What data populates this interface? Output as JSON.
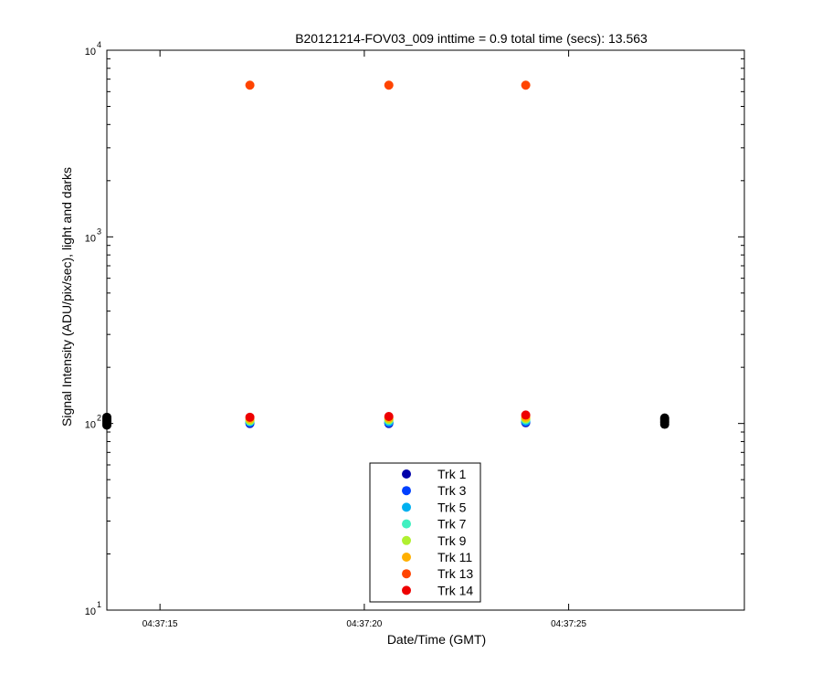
{
  "chart_data": {
    "type": "scatter",
    "title": "B20121214-FOV03_009 inttime = 0.9 total time (secs): 13.563",
    "xlabel": "Date/Time (GMT)",
    "ylabel": "Signal Intensity (ADU/pix/sec), light and darks",
    "y_scale": "log",
    "ylim": [
      10,
      10000
    ],
    "xlim": [
      "04:37:13.70",
      "04:37:29.30"
    ],
    "x_ticks": [
      "04:37:15",
      "04:37:20",
      "04:37:25"
    ],
    "y_ticks": [
      {
        "base": "10",
        "exp": "1"
      },
      {
        "base": "10",
        "exp": "2"
      },
      {
        "base": "10",
        "exp": "3"
      },
      {
        "base": "10",
        "exp": "4"
      }
    ],
    "grid": false,
    "legend_position": "bottom-center",
    "series": [
      {
        "name": "Trk 1",
        "color": "#0000aa",
        "x": [
          "04:37:17.20",
          "04:37:20.60",
          "04:37:23.95"
        ],
        "y": [
          100,
          100,
          101
        ]
      },
      {
        "name": "Trk 3",
        "color": "#0040ff",
        "x": [
          "04:37:17.20",
          "04:37:20.60",
          "04:37:23.95"
        ],
        "y": [
          101,
          101,
          102
        ]
      },
      {
        "name": "Trk 5",
        "color": "#00b0f0",
        "x": [
          "04:37:17.20",
          "04:37:20.60",
          "04:37:23.95"
        ],
        "y": [
          102,
          102,
          103
        ]
      },
      {
        "name": "Trk 7",
        "color": "#40f0c0",
        "x": [
          "04:37:17.20",
          "04:37:20.60",
          "04:37:23.95"
        ],
        "y": [
          103,
          104,
          105
        ]
      },
      {
        "name": "Trk 9",
        "color": "#b0f030",
        "x": [
          "04:37:17.20",
          "04:37:20.60",
          "04:37:23.95"
        ],
        "y": [
          104,
          105,
          106
        ]
      },
      {
        "name": "Trk 11",
        "color": "#ffb000",
        "x": [
          "04:37:17.20",
          "04:37:20.60",
          "04:37:23.95"
        ],
        "y": [
          106,
          107,
          108
        ]
      },
      {
        "name": "Trk 13",
        "color": "#ff4400",
        "x": [
          "04:37:17.20",
          "04:37:20.60",
          "04:37:23.95"
        ],
        "y": [
          6500,
          6500,
          6500
        ]
      },
      {
        "name": "Trk 14",
        "color": "#ee0000",
        "x": [
          "04:37:17.20",
          "04:37:20.60",
          "04:37:23.95"
        ],
        "y": [
          108,
          109,
          111
        ]
      }
    ],
    "darks": {
      "color": "#000000",
      "x": [
        "04:37:13.70",
        "04:37:13.70",
        "04:37:13.70",
        "04:37:13.70",
        "04:37:13.70",
        "04:37:13.70",
        "04:37:27.35",
        "04:37:27.35",
        "04:37:27.35",
        "04:37:27.35",
        "04:37:27.35"
      ],
      "y": [
        98,
        100,
        102,
        104,
        106,
        108,
        99,
        101,
        103,
        105,
        107
      ]
    }
  }
}
